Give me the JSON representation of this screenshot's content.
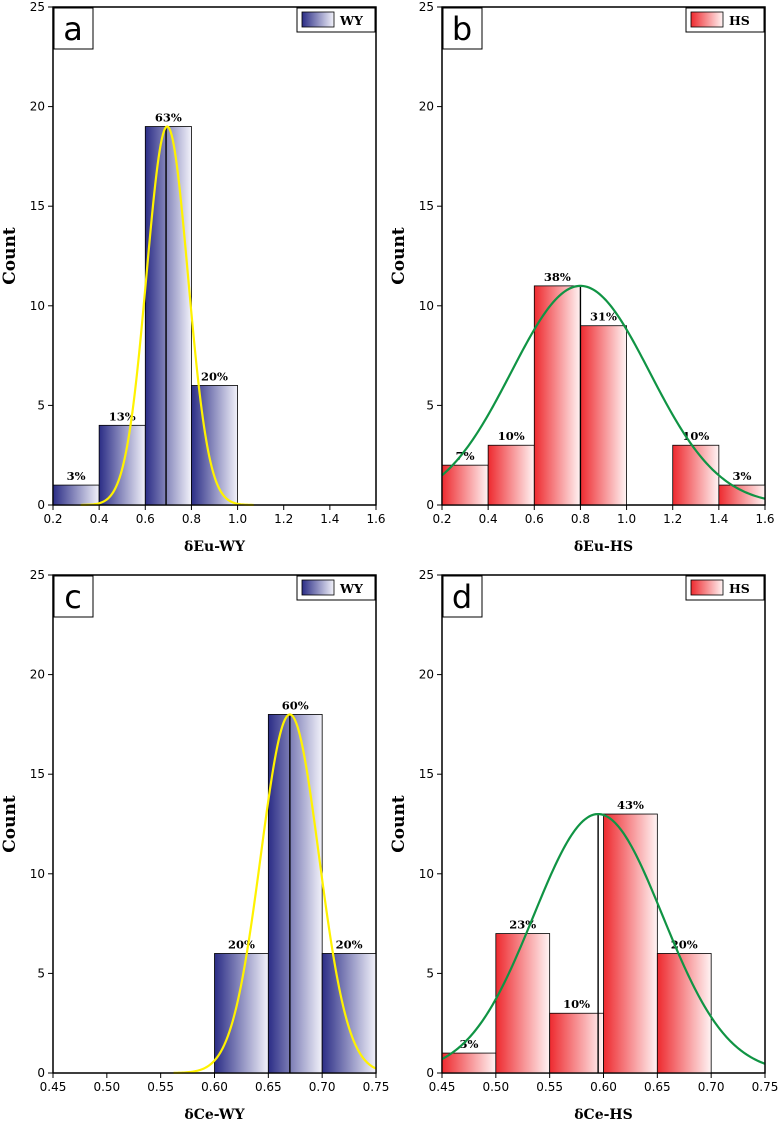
{
  "colors": {
    "blue_dark": "#2b2d86",
    "red_bar": "#ee2a2f",
    "yellow_curve": "#fff200",
    "green_curve": "#109444",
    "frame": "#000000"
  },
  "chart_data": [
    {
      "panel": "a",
      "type": "bar",
      "title": "",
      "legend": "WY",
      "legend_placement": "top-right",
      "xlabel": "δEu-WY",
      "ylabel": "Count",
      "xlim": [
        0.2,
        1.6
      ],
      "ylim": [
        0,
        25
      ],
      "xticks": [
        0.2,
        0.4,
        0.6,
        0.8,
        1.0,
        1.2,
        1.4,
        1.6
      ],
      "xtick_labels": [
        "0.2",
        "0.4",
        "0.6",
        "0.8",
        "1.0",
        "1.2",
        "1.4",
        "1.6"
      ],
      "yticks": [
        0,
        5,
        10,
        15,
        20,
        25
      ],
      "ytick_labels": [
        "0",
        "5",
        "10",
        "15",
        "20",
        "25"
      ],
      "bins": [
        [
          0.2,
          0.4
        ],
        [
          0.4,
          0.6
        ],
        [
          0.6,
          0.8
        ],
        [
          0.8,
          1.0
        ]
      ],
      "values": [
        1,
        4,
        19,
        6
      ],
      "labels": [
        "3%",
        "13%",
        "63%",
        "20%"
      ],
      "bar_style": "blue",
      "curve": {
        "mean": 0.695,
        "sd": 0.09,
        "peak": 19,
        "x_from": 0.32,
        "x_to": 1.07,
        "color": "yellow"
      },
      "mean_line": 0.69
    },
    {
      "panel": "b",
      "type": "bar",
      "title": "",
      "legend": "HS",
      "legend_placement": "top-right",
      "xlabel": "δEu-HS",
      "ylabel": "Count",
      "xlim": [
        0.2,
        1.6
      ],
      "ylim": [
        0,
        25
      ],
      "xticks": [
        0.2,
        0.4,
        0.6,
        0.8,
        1.0,
        1.2,
        1.4,
        1.6
      ],
      "xtick_labels": [
        "0.2",
        "0.4",
        "0.6",
        "0.8",
        "1.0",
        "1.2",
        "1.4",
        "1.6"
      ],
      "yticks": [
        0,
        5,
        10,
        15,
        20,
        25
      ],
      "ytick_labels": [
        "0",
        "5",
        "10",
        "15",
        "20",
        "25"
      ],
      "bins": [
        [
          0.2,
          0.4
        ],
        [
          0.4,
          0.6
        ],
        [
          0.6,
          0.8
        ],
        [
          0.8,
          1.0
        ],
        [
          1.2,
          1.4
        ],
        [
          1.4,
          1.6
        ]
      ],
      "values": [
        2,
        3,
        11,
        9,
        3,
        1
      ],
      "labels": [
        "7%",
        "10%",
        "38%",
        "31%",
        "10%",
        "3%"
      ],
      "bar_style": "red",
      "curve": {
        "mean": 0.8,
        "sd": 0.3,
        "peak": 11,
        "x_from": 0.2,
        "x_to": 1.6,
        "color": "green"
      },
      "mean_line": 0.8
    },
    {
      "panel": "c",
      "type": "bar",
      "title": "",
      "legend": "WY",
      "legend_placement": "top-right",
      "xlabel": "δCe-WY",
      "ylabel": "Count",
      "xlim": [
        0.45,
        0.75
      ],
      "ylim": [
        0,
        25
      ],
      "xticks": [
        0.45,
        0.5,
        0.55,
        0.6,
        0.65,
        0.7,
        0.75
      ],
      "xtick_labels": [
        "0.45",
        "0.50",
        "0.55",
        "0.60",
        "0.65",
        "0.70",
        "0.75"
      ],
      "yticks": [
        0,
        5,
        10,
        15,
        20,
        25
      ],
      "ytick_labels": [
        "0",
        "5",
        "10",
        "15",
        "20",
        "25"
      ],
      "bins": [
        [
          0.6,
          0.65
        ],
        [
          0.65,
          0.7
        ],
        [
          0.7,
          0.75
        ]
      ],
      "values": [
        6,
        18,
        6
      ],
      "labels": [
        "20%",
        "60%",
        "20%"
      ],
      "bar_style": "blue",
      "curve": {
        "mean": 0.67,
        "sd": 0.027,
        "peak": 18,
        "x_from": 0.562,
        "x_to": 0.75,
        "color": "yellow"
      },
      "mean_line": 0.67
    },
    {
      "panel": "d",
      "type": "bar",
      "title": "",
      "legend": "HS",
      "legend_placement": "top-right",
      "xlabel": "δCe-HS",
      "ylabel": "Count",
      "xlim": [
        0.45,
        0.75
      ],
      "ylim": [
        0,
        25
      ],
      "xticks": [
        0.45,
        0.5,
        0.55,
        0.6,
        0.65,
        0.7,
        0.75
      ],
      "xtick_labels": [
        "0.45",
        "0.50",
        "0.55",
        "0.60",
        "0.65",
        "0.70",
        "0.75"
      ],
      "yticks": [
        0,
        5,
        10,
        15,
        20,
        25
      ],
      "ytick_labels": [
        "0",
        "5",
        "10",
        "15",
        "20",
        "25"
      ],
      "bins": [
        [
          0.45,
          0.5
        ],
        [
          0.5,
          0.55
        ],
        [
          0.55,
          0.6
        ],
        [
          0.6,
          0.65
        ],
        [
          0.65,
          0.7
        ]
      ],
      "values": [
        1,
        7,
        3,
        13,
        6
      ],
      "labels": [
        "3%",
        "23%",
        "10%",
        "43%",
        "20%"
      ],
      "bar_style": "red",
      "curve": {
        "mean": 0.595,
        "sd": 0.06,
        "peak": 13,
        "x_from": 0.45,
        "x_to": 0.75,
        "color": "green"
      },
      "mean_line": 0.595
    }
  ]
}
